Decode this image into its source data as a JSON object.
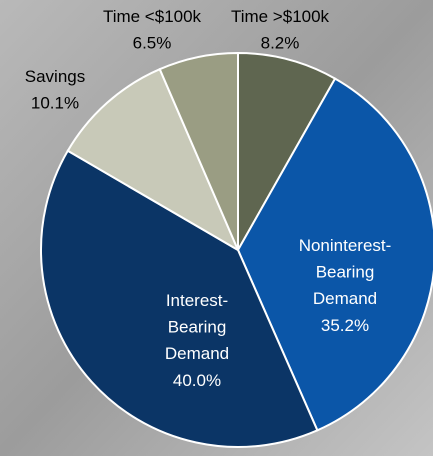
{
  "chart_data": {
    "type": "pie",
    "categories": [
      "Time >$100k",
      "Noninterest-Bearing Demand",
      "Interest-Bearing Demand",
      "Savings",
      "Time <$100k"
    ],
    "values": [
      8.2,
      35.2,
      40.0,
      10.1,
      6.5
    ],
    "value_labels": [
      "8.2%",
      "35.2%",
      "40.0%",
      "10.1%",
      "6.5%"
    ],
    "colors": [
      "#5f6650",
      "#0b56a8",
      "#0b3566",
      "#c8c9b8",
      "#9a9d83"
    ]
  }
}
